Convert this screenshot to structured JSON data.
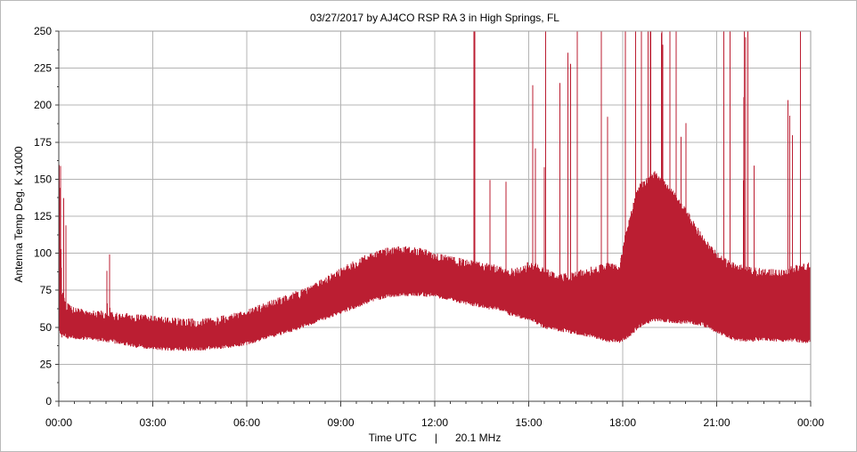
{
  "chart_data": {
    "type": "line",
    "title": "03/27/2017  by  AJ4CO RSP RA 3  in  High Springs, FL",
    "xlabel": "Time UTC      |      20.1 MHz",
    "ylabel": "Antenna Temp Deg. K x1000",
    "x_tick_labels": [
      "00:00",
      "03:00",
      "06:00",
      "09:00",
      "12:00",
      "15:00",
      "18:00",
      "21:00",
      "00:00"
    ],
    "y_tick_labels": [
      "0",
      "25",
      "50",
      "75",
      "100",
      "125",
      "150",
      "175",
      "200",
      "225",
      "250"
    ],
    "xlim_hours": [
      0,
      24
    ],
    "ylim": [
      0,
      250
    ],
    "grid": true,
    "line_color": "#bb1e32",
    "series": [
      {
        "name": "",
        "x_hours": [
          0,
          0.1,
          0.2,
          0.3,
          0.5,
          1,
          1.5,
          2,
          2.5,
          3,
          3.5,
          4,
          4.5,
          5,
          5.5,
          6,
          6.5,
          7,
          7.5,
          8,
          8.5,
          9,
          9.5,
          10,
          10.5,
          11,
          11.5,
          12,
          12.5,
          13,
          13.5,
          14,
          14.5,
          14.9,
          15,
          15.5,
          16,
          16.5,
          17,
          17.5,
          17.9,
          18.1,
          18.5,
          19,
          19.5,
          20,
          20.5,
          21,
          21.5,
          22,
          22.5,
          23,
          23.5,
          24
        ],
        "low": [
          50,
          46,
          46,
          45,
          45,
          44,
          43,
          41,
          39,
          38,
          37,
          37,
          37,
          38,
          39,
          41,
          44,
          47,
          50,
          54,
          58,
          62,
          66,
          70,
          73,
          74,
          74,
          73,
          71,
          68,
          66,
          64,
          60,
          58,
          58,
          52,
          50,
          48,
          46,
          43,
          42,
          44,
          52,
          57,
          56,
          55,
          54,
          49,
          44,
          43,
          44,
          43,
          43,
          42
        ],
        "high": [
          170,
          70,
          62,
          60,
          58,
          56,
          55,
          54,
          53,
          52,
          51,
          50,
          50,
          51,
          53,
          56,
          60,
          64,
          68,
          72,
          78,
          84,
          90,
          95,
          98,
          99,
          98,
          95,
          92,
          90,
          88,
          86,
          84,
          86,
          90,
          85,
          80,
          82,
          85,
          88,
          86,
          110,
          140,
          150,
          140,
          125,
          108,
          95,
          88,
          85,
          84,
          83,
          86,
          88
        ],
        "spike_note": "many narrow spikes reach 100-250 between 13:00 and 24:00"
      }
    ]
  }
}
